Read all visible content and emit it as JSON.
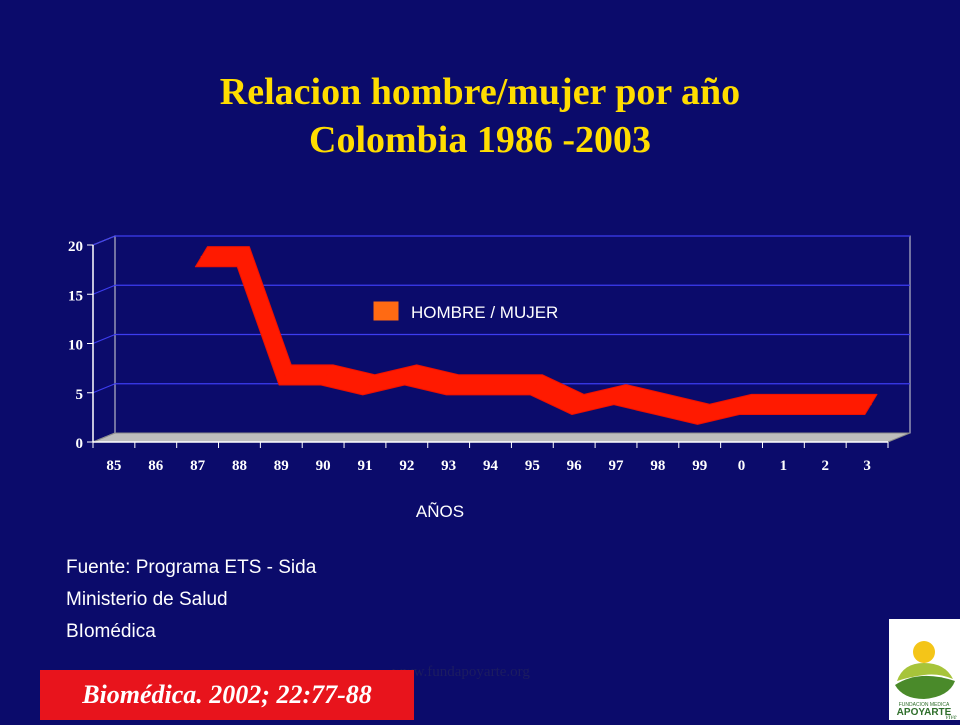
{
  "slide": {
    "title_line1": "Relacion hombre/mujer por año",
    "title_line2": "Colombia 1986 -2003",
    "source_lines": [
      "Fuente: Programa ETS - Sida",
      "Ministerio de Salud",
      "BIomédica"
    ],
    "url": "www.fundapoyarte.org",
    "citation": "Biomédica. 2002; 22:77-88",
    "logo": {
      "line1": "FUNDACION MEDICA",
      "line2": "APOYARTE",
      "line3": "vive"
    }
  },
  "colors": {
    "background": "#0b0b6b",
    "title": "#ffdd00",
    "series": "#ff1a00",
    "legend_swatch": "#ff6a13",
    "citation_bg": "#e8141c"
  },
  "chart_data": {
    "type": "line",
    "categories": [
      "85",
      "86",
      "87",
      "88",
      "89",
      "90",
      "91",
      "92",
      "93",
      "94",
      "95",
      "96",
      "97",
      "98",
      "99",
      "0",
      "1",
      "2",
      "3"
    ],
    "series": [
      {
        "name": "HOMBRE / MUJER",
        "values": [
          null,
          null,
          18,
          18,
          6,
          6,
          5,
          6,
          5,
          5,
          5,
          3,
          4,
          3,
          2,
          3,
          3,
          3,
          3
        ]
      }
    ],
    "xlabel": "AÑOS",
    "ylabel": "",
    "ylim": [
      0,
      20
    ],
    "yticks": [
      0,
      5,
      10,
      15,
      20
    ],
    "grid": true,
    "legend": "inside-top-center"
  }
}
